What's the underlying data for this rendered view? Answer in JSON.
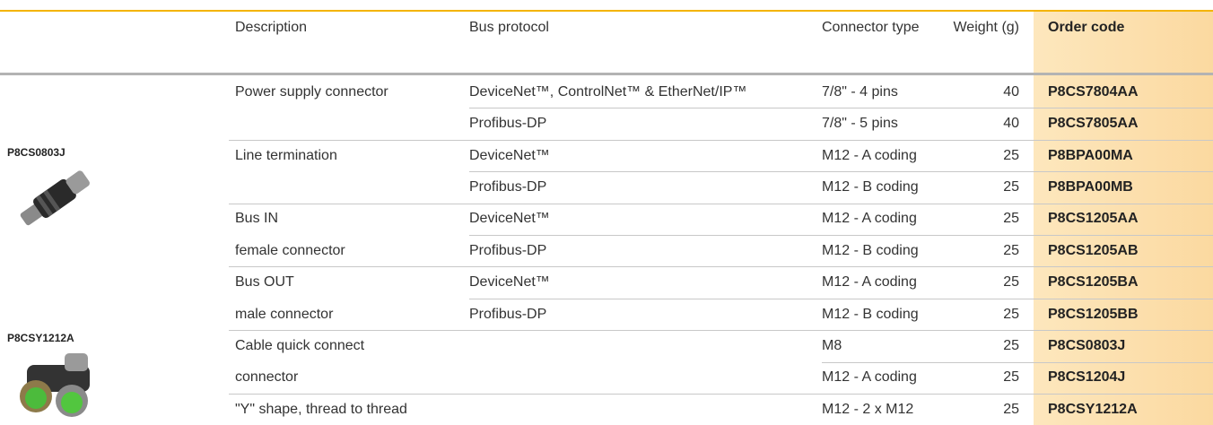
{
  "table": {
    "header": [
      "Description",
      "Bus protocol",
      "Connector type",
      "Weight (g)",
      "Order code"
    ],
    "products": [
      "P8CS0803J",
      "P8CSY1212A"
    ],
    "rows": [
      {
        "description": "Power supply connector",
        "protocol": "DeviceNet™, ControlNet™ & EtherNet/IP™",
        "connector": "7/8\" - 4 pins",
        "weight": 40,
        "code": "P8CS7804AA"
      },
      {
        "protocol": "Profibus-DP",
        "connector": "7/8\" - 5 pins",
        "weight": 40,
        "code": "P8CS7805AA"
      },
      {
        "description": "Line termination",
        "protocol": "DeviceNet™",
        "connector": "M12 - A coding",
        "weight": 25,
        "code": "P8BPA00MA"
      },
      {
        "protocol": "Profibus-DP",
        "connector": "M12 - B coding",
        "weight": 25,
        "code": "P8BPA00MB"
      },
      {
        "description": "Bus IN",
        "protocol": "DeviceNet™",
        "connector": "M12 - A coding",
        "weight": 25,
        "code": "P8CS1205AA"
      },
      {
        "description": "female connector",
        "protocol": "Profibus-DP",
        "connector": "M12 - B coding",
        "weight": 25,
        "code": "P8CS1205AB"
      },
      {
        "description": "Bus OUT",
        "protocol": "DeviceNet™",
        "connector": "M12 - A coding",
        "weight": 25,
        "code": "P8CS1205BA"
      },
      {
        "description": "male connector",
        "protocol": "Profibus-DP",
        "connector": "M12 - B coding",
        "weight": 25,
        "code": "P8CS1205BB"
      },
      {
        "description": "Cable quick connect",
        "connector": "M8",
        "weight": 25,
        "code": "P8CS0803J"
      },
      {
        "description": "connector",
        "connector": "M12 - A coding",
        "weight": 25,
        "code": "P8CS1204J"
      },
      {
        "description": "\"Y\" shape, thread to thread",
        "connector": "M12 - 2 x M12",
        "weight": 25,
        "code": "P8CSY1212A"
      }
    ]
  }
}
